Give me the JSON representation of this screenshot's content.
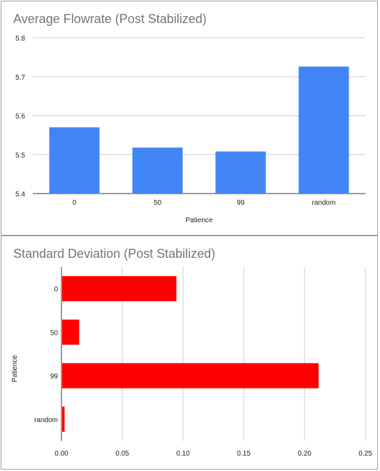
{
  "chart_data": [
    {
      "type": "bar",
      "orientation": "vertical",
      "title": "Average Flowrate (Post Stabilized)",
      "xlabel": "Patience",
      "ylabel": "",
      "categories": [
        "0",
        "50",
        "99",
        "random"
      ],
      "values": [
        5.57,
        5.518,
        5.508,
        5.726
      ],
      "ylim": [
        5.4,
        5.8
      ],
      "yticks": [
        "5.4",
        "5.5",
        "5.6",
        "5.7",
        "5.8"
      ],
      "grid": true,
      "legend": "none",
      "color": "#4285f4"
    },
    {
      "type": "bar",
      "orientation": "horizontal",
      "title": "Standard Deviation (Post Stabilized)",
      "xlabel": "",
      "ylabel": "Patience",
      "categories": [
        "0",
        "50",
        "99",
        "random"
      ],
      "values": [
        0.094,
        0.014,
        0.211,
        0.002
      ],
      "xlim": [
        0,
        0.25
      ],
      "xticks": [
        "0.00",
        "0.05",
        "0.10",
        "0.15",
        "0.20",
        "0.25"
      ],
      "grid": true,
      "legend": "none",
      "color": "#ff0000"
    }
  ]
}
